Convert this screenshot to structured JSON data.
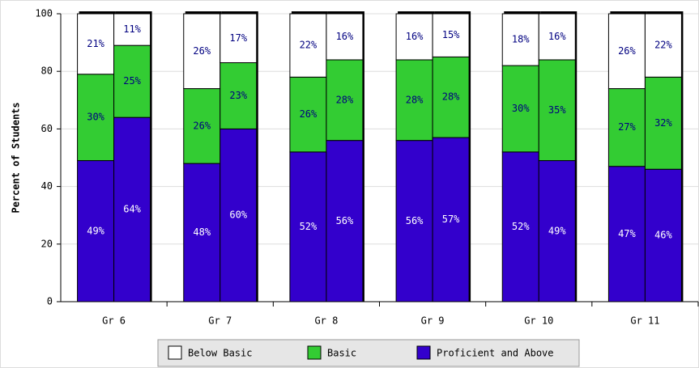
{
  "chart_data": {
    "type": "grouped-stacked-bar",
    "y_label": "Percent of Students",
    "categories": [
      "Gr 6",
      "Gr 7",
      "Gr 8",
      "Gr 9",
      "Gr 10",
      "Gr 11"
    ],
    "series": [
      {
        "name": "Below Basic",
        "color": "#ffffff",
        "label_color": "#000080",
        "values": [
          [
            21,
            11
          ],
          [
            26,
            17
          ],
          [
            22,
            16
          ],
          [
            16,
            15
          ],
          [
            18,
            16
          ],
          [
            26,
            22
          ]
        ],
        "value_labels": [
          [
            "21%",
            "11%"
          ],
          [
            "26%",
            "17%"
          ],
          [
            "22%",
            "16%"
          ],
          [
            "16%",
            "15%"
          ],
          [
            "18%",
            "16%"
          ],
          [
            "26%",
            "22%"
          ]
        ]
      },
      {
        "name": "Basic",
        "color": "#33cc33",
        "label_color": "#000080",
        "values": [
          [
            30,
            25
          ],
          [
            26,
            23
          ],
          [
            26,
            28
          ],
          [
            28,
            28
          ],
          [
            30,
            35
          ],
          [
            27,
            32
          ]
        ],
        "value_labels": [
          [
            "30%",
            "25%"
          ],
          [
            "26%",
            "23%"
          ],
          [
            "26%",
            "28%"
          ],
          [
            "28%",
            "28%"
          ],
          [
            "30%",
            "35%"
          ],
          [
            "27%",
            "32%"
          ]
        ]
      },
      {
        "name": "Proficient and Above",
        "color": "#3300cc",
        "label_color": "#ffffff",
        "values": [
          [
            49,
            64
          ],
          [
            48,
            60
          ],
          [
            52,
            56
          ],
          [
            56,
            57
          ],
          [
            52,
            49
          ],
          [
            47,
            46
          ]
        ],
        "value_labels": [
          [
            "49%",
            "64%"
          ],
          [
            "48%",
            "60%"
          ],
          [
            "52%",
            "56%"
          ],
          [
            "56%",
            "57%"
          ],
          [
            "52%",
            "49%"
          ],
          [
            "47%",
            "46%"
          ]
        ]
      }
    ],
    "ylim": [
      0,
      100
    ],
    "yticks": [
      0,
      20,
      40,
      60,
      80,
      100
    ],
    "grid": true,
    "legend": "bottom"
  }
}
